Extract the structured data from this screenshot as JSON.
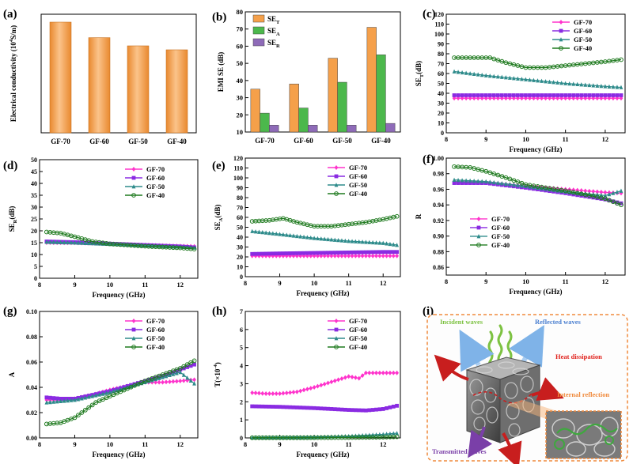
{
  "figure": {
    "panel_labels": [
      "(a)",
      "(b)",
      "(c)",
      "(d)",
      "(e)",
      "(f)",
      "(g)",
      "(h)",
      "(i)"
    ]
  },
  "colors": {
    "orange": "#F5A04A",
    "green": "#4CB84C",
    "purple": "#8E6BB8",
    "gf70": "#FF33CC",
    "gf60": "#8A2BE2",
    "gf50": "#2E8B8B",
    "gf40": "#1F7A1F"
  },
  "chart_data": [
    {
      "panel": "(a)",
      "type": "bar",
      "categories": [
        "GF-70",
        "GF-60",
        "GF-50",
        "GF-40"
      ],
      "values": [
        3.92,
        3.37,
        3.08,
        2.94
      ],
      "ylabel": "Electrical conductivity (10^4 S/m)",
      "ylabel_main": "Electrical conductivity (10",
      "ylabel_sup": "4",
      "ylabel_end": "S/m)",
      "ylim": [
        0,
        4.2
      ],
      "color": "#F5A04A"
    },
    {
      "panel": "(b)",
      "type": "bar",
      "categories": [
        "GF-70",
        "GF-60",
        "GF-50",
        "GF-40"
      ],
      "series": [
        {
          "name": "SE_T",
          "label": "SE",
          "sub": "T",
          "values": [
            35,
            38,
            53,
            71
          ],
          "color": "#F5A04A"
        },
        {
          "name": "SE_A",
          "label": "SE",
          "sub": "A",
          "values": [
            21,
            24,
            39,
            55
          ],
          "color": "#4CB84C"
        },
        {
          "name": "SE_R",
          "label": "SE",
          "sub": "R",
          "values": [
            14,
            14,
            14,
            15
          ],
          "color": "#8E6BB8"
        }
      ],
      "ylabel": "EMI SE (dB)",
      "ylim": [
        10,
        80
      ],
      "yticks": [
        10,
        20,
        30,
        40,
        50,
        60,
        70,
        80
      ]
    },
    {
      "panel": "(c)",
      "type": "line",
      "ylabel": "SE_T(dB)",
      "ylabel_main": "SE",
      "ylabel_sub": "T",
      "ylabel_end": "(dB)",
      "xlabel": "Frequency (GHz)",
      "xlim": [
        8.0,
        12.5
      ],
      "ylim": [
        0,
        120
      ],
      "xticks": [
        8,
        9,
        10,
        11,
        12
      ],
      "yticks": [
        0,
        10,
        20,
        30,
        40,
        50,
        60,
        70,
        80,
        90,
        100,
        110,
        120
      ],
      "legend": "top-right",
      "series": [
        {
          "name": "GF-70",
          "x": [
            8.2,
            9,
            10,
            11,
            12,
            12.4
          ],
          "y": [
            35,
            35,
            35,
            35,
            35,
            35
          ]
        },
        {
          "name": "GF-60",
          "x": [
            8.2,
            9,
            10,
            11,
            12,
            12.4
          ],
          "y": [
            38,
            38,
            38,
            38,
            38,
            38
          ]
        },
        {
          "name": "GF-50",
          "x": [
            8.2,
            9,
            10,
            11,
            12,
            12.4
          ],
          "y": [
            62,
            58,
            54,
            50,
            47,
            46
          ]
        },
        {
          "name": "GF-40",
          "x": [
            8.2,
            8.6,
            9.1,
            9.5,
            10.0,
            10.5,
            11.0,
            11.5,
            12.0,
            12.4
          ],
          "y": [
            76,
            76,
            76,
            71,
            66,
            66,
            68,
            70,
            72,
            74
          ]
        }
      ]
    },
    {
      "panel": "(d)",
      "type": "line",
      "ylabel": "SE_R(dB)",
      "ylabel_main": "SE",
      "ylabel_sub": "R",
      "ylabel_end": "(dB)",
      "xlabel": "Frequency (GHz)",
      "xlim": [
        8.0,
        12.5
      ],
      "ylim": [
        0,
        50
      ],
      "xticks": [
        8,
        9,
        10,
        11,
        12
      ],
      "yticks": [
        0,
        5,
        10,
        15,
        20,
        25,
        30,
        35,
        40,
        45,
        50
      ],
      "legend": "top-right",
      "series": [
        {
          "name": "GF-70",
          "x": [
            8.2,
            9,
            10,
            11,
            12,
            12.4
          ],
          "y": [
            15.0,
            14.9,
            14.5,
            14.0,
            13.6,
            13.4
          ]
        },
        {
          "name": "GF-60",
          "x": [
            8.2,
            9,
            10,
            11,
            12,
            12.4
          ],
          "y": [
            15.5,
            15.2,
            14.6,
            14.0,
            13.4,
            13.0
          ]
        },
        {
          "name": "GF-50",
          "x": [
            8.2,
            9,
            10,
            11,
            12,
            12.4
          ],
          "y": [
            15.3,
            15.0,
            14.4,
            13.8,
            13.2,
            12.9
          ]
        },
        {
          "name": "GF-40",
          "x": [
            8.2,
            8.6,
            9.0,
            9.5,
            10.0,
            11.0,
            12.0,
            12.4
          ],
          "y": [
            19.5,
            19.0,
            17.5,
            15.5,
            14.5,
            13.5,
            12.8,
            12.3
          ]
        }
      ]
    },
    {
      "panel": "(e)",
      "type": "line",
      "ylabel": "SE_A(dB)",
      "ylabel_main": "SE",
      "ylabel_sub": "A",
      "ylabel_end": "(dB)",
      "xlabel": "Frequency (GHz)",
      "xlim": [
        8.0,
        12.5
      ],
      "ylim": [
        0,
        120
      ],
      "xticks": [
        8,
        9,
        10,
        11,
        12
      ],
      "yticks": [
        0,
        10,
        20,
        30,
        40,
        50,
        60,
        70,
        80,
        90,
        100,
        110,
        120
      ],
      "legend": "top-right",
      "series": [
        {
          "name": "GF-70",
          "x": [
            8.2,
            9,
            10,
            11,
            12,
            12.4
          ],
          "y": [
            21,
            21,
            21,
            21,
            21,
            21
          ]
        },
        {
          "name": "GF-60",
          "x": [
            8.2,
            9,
            10,
            11,
            12,
            12.4
          ],
          "y": [
            23,
            23.5,
            24,
            24.5,
            25,
            25
          ]
        },
        {
          "name": "GF-50",
          "x": [
            8.2,
            9,
            10,
            11,
            12,
            12.4
          ],
          "y": [
            46,
            43,
            39,
            36,
            34,
            32
          ]
        },
        {
          "name": "GF-40",
          "x": [
            8.2,
            8.7,
            9.1,
            9.5,
            10.0,
            10.5,
            11.0,
            11.5,
            12.0,
            12.4
          ],
          "y": [
            56,
            57,
            59,
            55,
            51,
            51,
            53,
            55,
            58,
            61
          ]
        }
      ]
    },
    {
      "panel": "(f)",
      "type": "line",
      "ylabel": "R",
      "xlabel": "Frequency (GHz)",
      "xlim": [
        8.0,
        12.5
      ],
      "ylim": [
        0.85,
        1.0
      ],
      "xticks": [
        8,
        9,
        10,
        11,
        12
      ],
      "yticks": [
        0.86,
        0.88,
        0.9,
        0.92,
        0.94,
        0.96,
        0.98,
        1.0
      ],
      "ytick_labels": [
        "0.86",
        "0.88",
        "0.90",
        "0.92",
        "0.94",
        "0.96",
        "0.98",
        "1.00"
      ],
      "legend": "bottom-left",
      "series": [
        {
          "name": "GF-70",
          "x": [
            8.2,
            9,
            10,
            11,
            12,
            12.4
          ],
          "y": [
            0.97,
            0.969,
            0.964,
            0.96,
            0.956,
            0.955
          ]
        },
        {
          "name": "GF-60",
          "x": [
            8.2,
            9,
            10,
            11,
            12,
            12.4
          ],
          "y": [
            0.968,
            0.968,
            0.962,
            0.955,
            0.947,
            0.942
          ]
        },
        {
          "name": "GF-50",
          "x": [
            8.2,
            9,
            10,
            11,
            12,
            12.4
          ],
          "y": [
            0.972,
            0.97,
            0.964,
            0.957,
            0.952,
            0.958
          ]
        },
        {
          "name": "GF-40",
          "x": [
            8.2,
            8.6,
            9.0,
            9.5,
            10.0,
            11.0,
            12.0,
            12.4
          ],
          "y": [
            0.989,
            0.988,
            0.983,
            0.975,
            0.966,
            0.958,
            0.948,
            0.94
          ]
        }
      ]
    },
    {
      "panel": "(g)",
      "type": "line",
      "ylabel": "A",
      "xlabel": "Frequency (GHz)",
      "xlim": [
        8.0,
        12.5
      ],
      "ylim": [
        0,
        0.1
      ],
      "xticks": [
        8,
        9,
        10,
        11,
        12
      ],
      "yticks": [
        0.0,
        0.02,
        0.04,
        0.06,
        0.08,
        0.1
      ],
      "ytick_labels": [
        "0.00",
        "0.02",
        "0.04",
        "0.06",
        "0.08",
        "0.10"
      ],
      "legend": "top-right",
      "series": [
        {
          "name": "GF-70",
          "x": [
            8.2,
            8.6,
            9.0,
            9.5,
            10.0,
            10.5,
            11.0,
            11.5,
            12.0,
            12.4
          ],
          "y": [
            0.03,
            0.03,
            0.031,
            0.034,
            0.038,
            0.041,
            0.044,
            0.044,
            0.045,
            0.046
          ]
        },
        {
          "name": "GF-60",
          "x": [
            8.2,
            8.6,
            9.0,
            9.5,
            10.0,
            10.5,
            11.0,
            11.5,
            12.0,
            12.4
          ],
          "y": [
            0.032,
            0.031,
            0.031,
            0.034,
            0.037,
            0.041,
            0.045,
            0.049,
            0.054,
            0.058
          ]
        },
        {
          "name": "GF-50",
          "x": [
            8.2,
            8.6,
            9.0,
            9.5,
            10.0,
            10.5,
            11.0,
            11.5,
            12.0,
            12.4
          ],
          "y": [
            0.028,
            0.029,
            0.03,
            0.033,
            0.036,
            0.04,
            0.044,
            0.048,
            0.052,
            0.043
          ]
        },
        {
          "name": "GF-40",
          "x": [
            8.2,
            8.6,
            9.0,
            9.3,
            9.6,
            10.0,
            10.5,
            11.0,
            11.5,
            12.0,
            12.4
          ],
          "y": [
            0.011,
            0.012,
            0.016,
            0.022,
            0.028,
            0.033,
            0.039,
            0.045,
            0.05,
            0.055,
            0.061
          ]
        }
      ]
    },
    {
      "panel": "(h)",
      "type": "line",
      "ylabel": "T(×10^-4)",
      "ylabel_main": "T(×10",
      "ylabel_sup": "-4",
      "ylabel_end": ")",
      "xlabel": "Frequency (GHz)",
      "xlim": [
        8.0,
        12.5
      ],
      "ylim": [
        0,
        7
      ],
      "xticks": [
        8,
        9,
        10,
        11,
        12
      ],
      "yticks": [
        0,
        1,
        2,
        3,
        4,
        5,
        6,
        7
      ],
      "legend": "top-right",
      "series": [
        {
          "name": "GF-70",
          "x": [
            8.2,
            8.6,
            9.0,
            9.5,
            10.0,
            10.5,
            11.0,
            11.3,
            11.5,
            11.8,
            12.0,
            12.4
          ],
          "y": [
            2.5,
            2.45,
            2.45,
            2.55,
            2.8,
            3.1,
            3.4,
            3.3,
            3.6,
            3.6,
            3.6,
            3.6
          ]
        },
        {
          "name": "GF-60",
          "x": [
            8.2,
            9,
            10,
            11,
            11.5,
            12.0,
            12.4
          ],
          "y": [
            1.75,
            1.72,
            1.65,
            1.55,
            1.52,
            1.6,
            1.78
          ]
        },
        {
          "name": "GF-50",
          "x": [
            8.2,
            9,
            10,
            11,
            12,
            12.4
          ],
          "y": [
            0.02,
            0.03,
            0.05,
            0.1,
            0.2,
            0.26
          ]
        },
        {
          "name": "GF-40",
          "x": [
            8.2,
            9,
            10,
            11,
            12,
            12.4
          ],
          "y": [
            0.01,
            0.01,
            0.01,
            0.02,
            0.04,
            0.06
          ]
        }
      ]
    }
  ],
  "schematic": {
    "labels": {
      "incident": "Incident waves",
      "reflected": "Reflected waves",
      "heat": "Heat dissipation",
      "internal": "Internal reflection",
      "transmitted": "Transmitted waves"
    },
    "label_colors": {
      "incident": "#7DC242",
      "reflected": "#4A7FD0",
      "heat": "#E0201A",
      "internal": "#F08A3C",
      "transmitted": "#7A3FA8"
    }
  }
}
